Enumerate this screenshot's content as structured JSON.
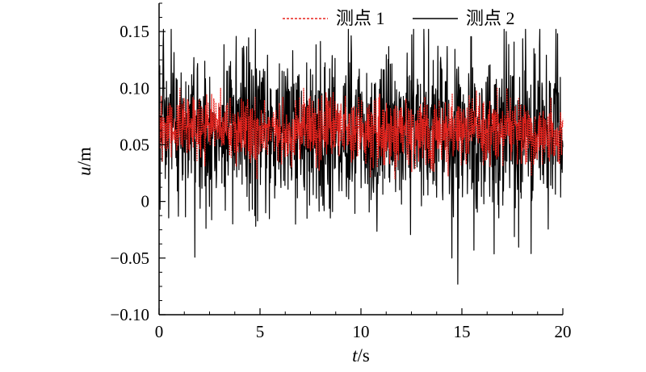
{
  "chart_data": {
    "type": "line",
    "title": "",
    "xlabel": {
      "var": "t",
      "unit": "/s"
    },
    "ylabel": {
      "var": "u",
      "unit": "/m"
    },
    "xlim": [
      0,
      20
    ],
    "ylim": [
      -0.1,
      0.175
    ],
    "x_ticks": [
      0,
      5,
      10,
      15,
      20
    ],
    "x_tick_labels": [
      "0",
      "5",
      "10",
      "15",
      "20"
    ],
    "y_ticks": [
      -0.1,
      -0.05,
      0,
      0.05,
      0.1,
      0.15
    ],
    "y_tick_labels": [
      "−0.10",
      "−0.05",
      "0",
      "0.05",
      "0.10",
      "0.15"
    ],
    "grid": false,
    "legend_position": "top-right",
    "series": [
      {
        "name": "测点 1",
        "color": "#e8251f",
        "style": "dashed",
        "mean": 0.063,
        "typical_range": [
          0.03,
          0.09
        ],
        "min": 0.02,
        "max": 0.1
      },
      {
        "name": "测点 2",
        "color": "#000000",
        "style": "solid",
        "mean": 0.062,
        "typical_range": [
          -0.01,
          0.13
        ],
        "min": -0.073,
        "max": 0.152,
        "notable_points": [
          {
            "x": 0.6,
            "y": 0.152
          },
          {
            "x": 17.2,
            "y": 0.15
          },
          {
            "x": 14.8,
            "y": -0.073
          },
          {
            "x": 14.5,
            "y": -0.05
          }
        ]
      }
    ]
  }
}
